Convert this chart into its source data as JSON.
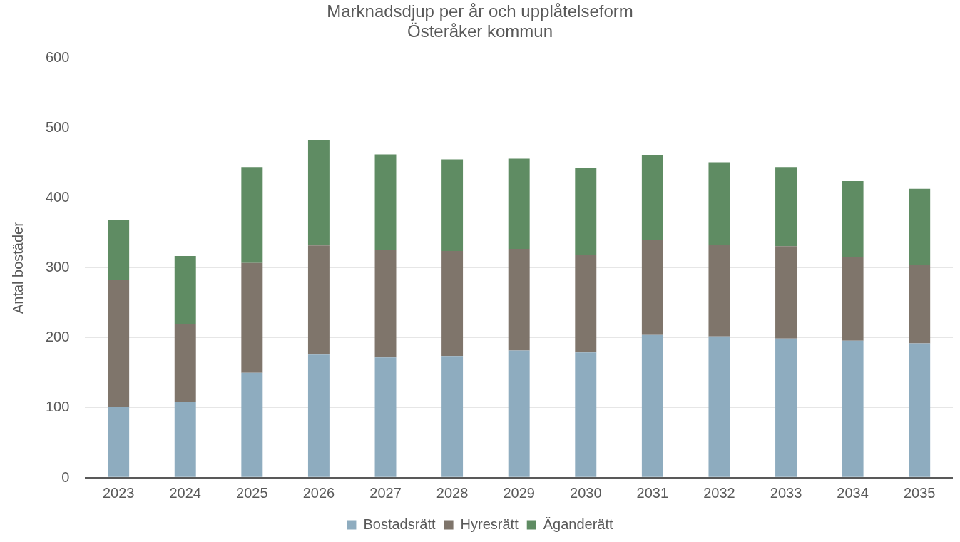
{
  "chart_data": {
    "type": "bar",
    "title": "Marknadsdjup per år och upplåtelseform",
    "subtitle": "Österåker kommun",
    "ylabel": "Antal bostäder",
    "categories": [
      "2023",
      "2024",
      "2025",
      "2026",
      "2027",
      "2028",
      "2029",
      "2030",
      "2031",
      "2032",
      "2033",
      "2034",
      "2035"
    ],
    "series": [
      {
        "name": "Bostadsrätt",
        "color": "#8eacbf",
        "values": [
          101,
          109,
          150,
          176,
          172,
          174,
          182,
          179,
          204,
          202,
          199,
          196,
          192
        ]
      },
      {
        "name": "Hyresrätt",
        "color": "#7f756b",
        "values": [
          182,
          111,
          157,
          156,
          154,
          150,
          145,
          140,
          136,
          131,
          132,
          119,
          112
        ]
      },
      {
        "name": "Äganderätt",
        "color": "#5f8c63",
        "values": [
          85,
          97,
          137,
          151,
          136,
          131,
          129,
          124,
          121,
          118,
          113,
          109,
          109
        ]
      }
    ],
    "stacked": true,
    "ylim": [
      0,
      600
    ],
    "yticks": [
      0,
      100,
      200,
      300,
      400,
      500,
      600
    ],
    "grid": "y",
    "legend": "bottom"
  }
}
